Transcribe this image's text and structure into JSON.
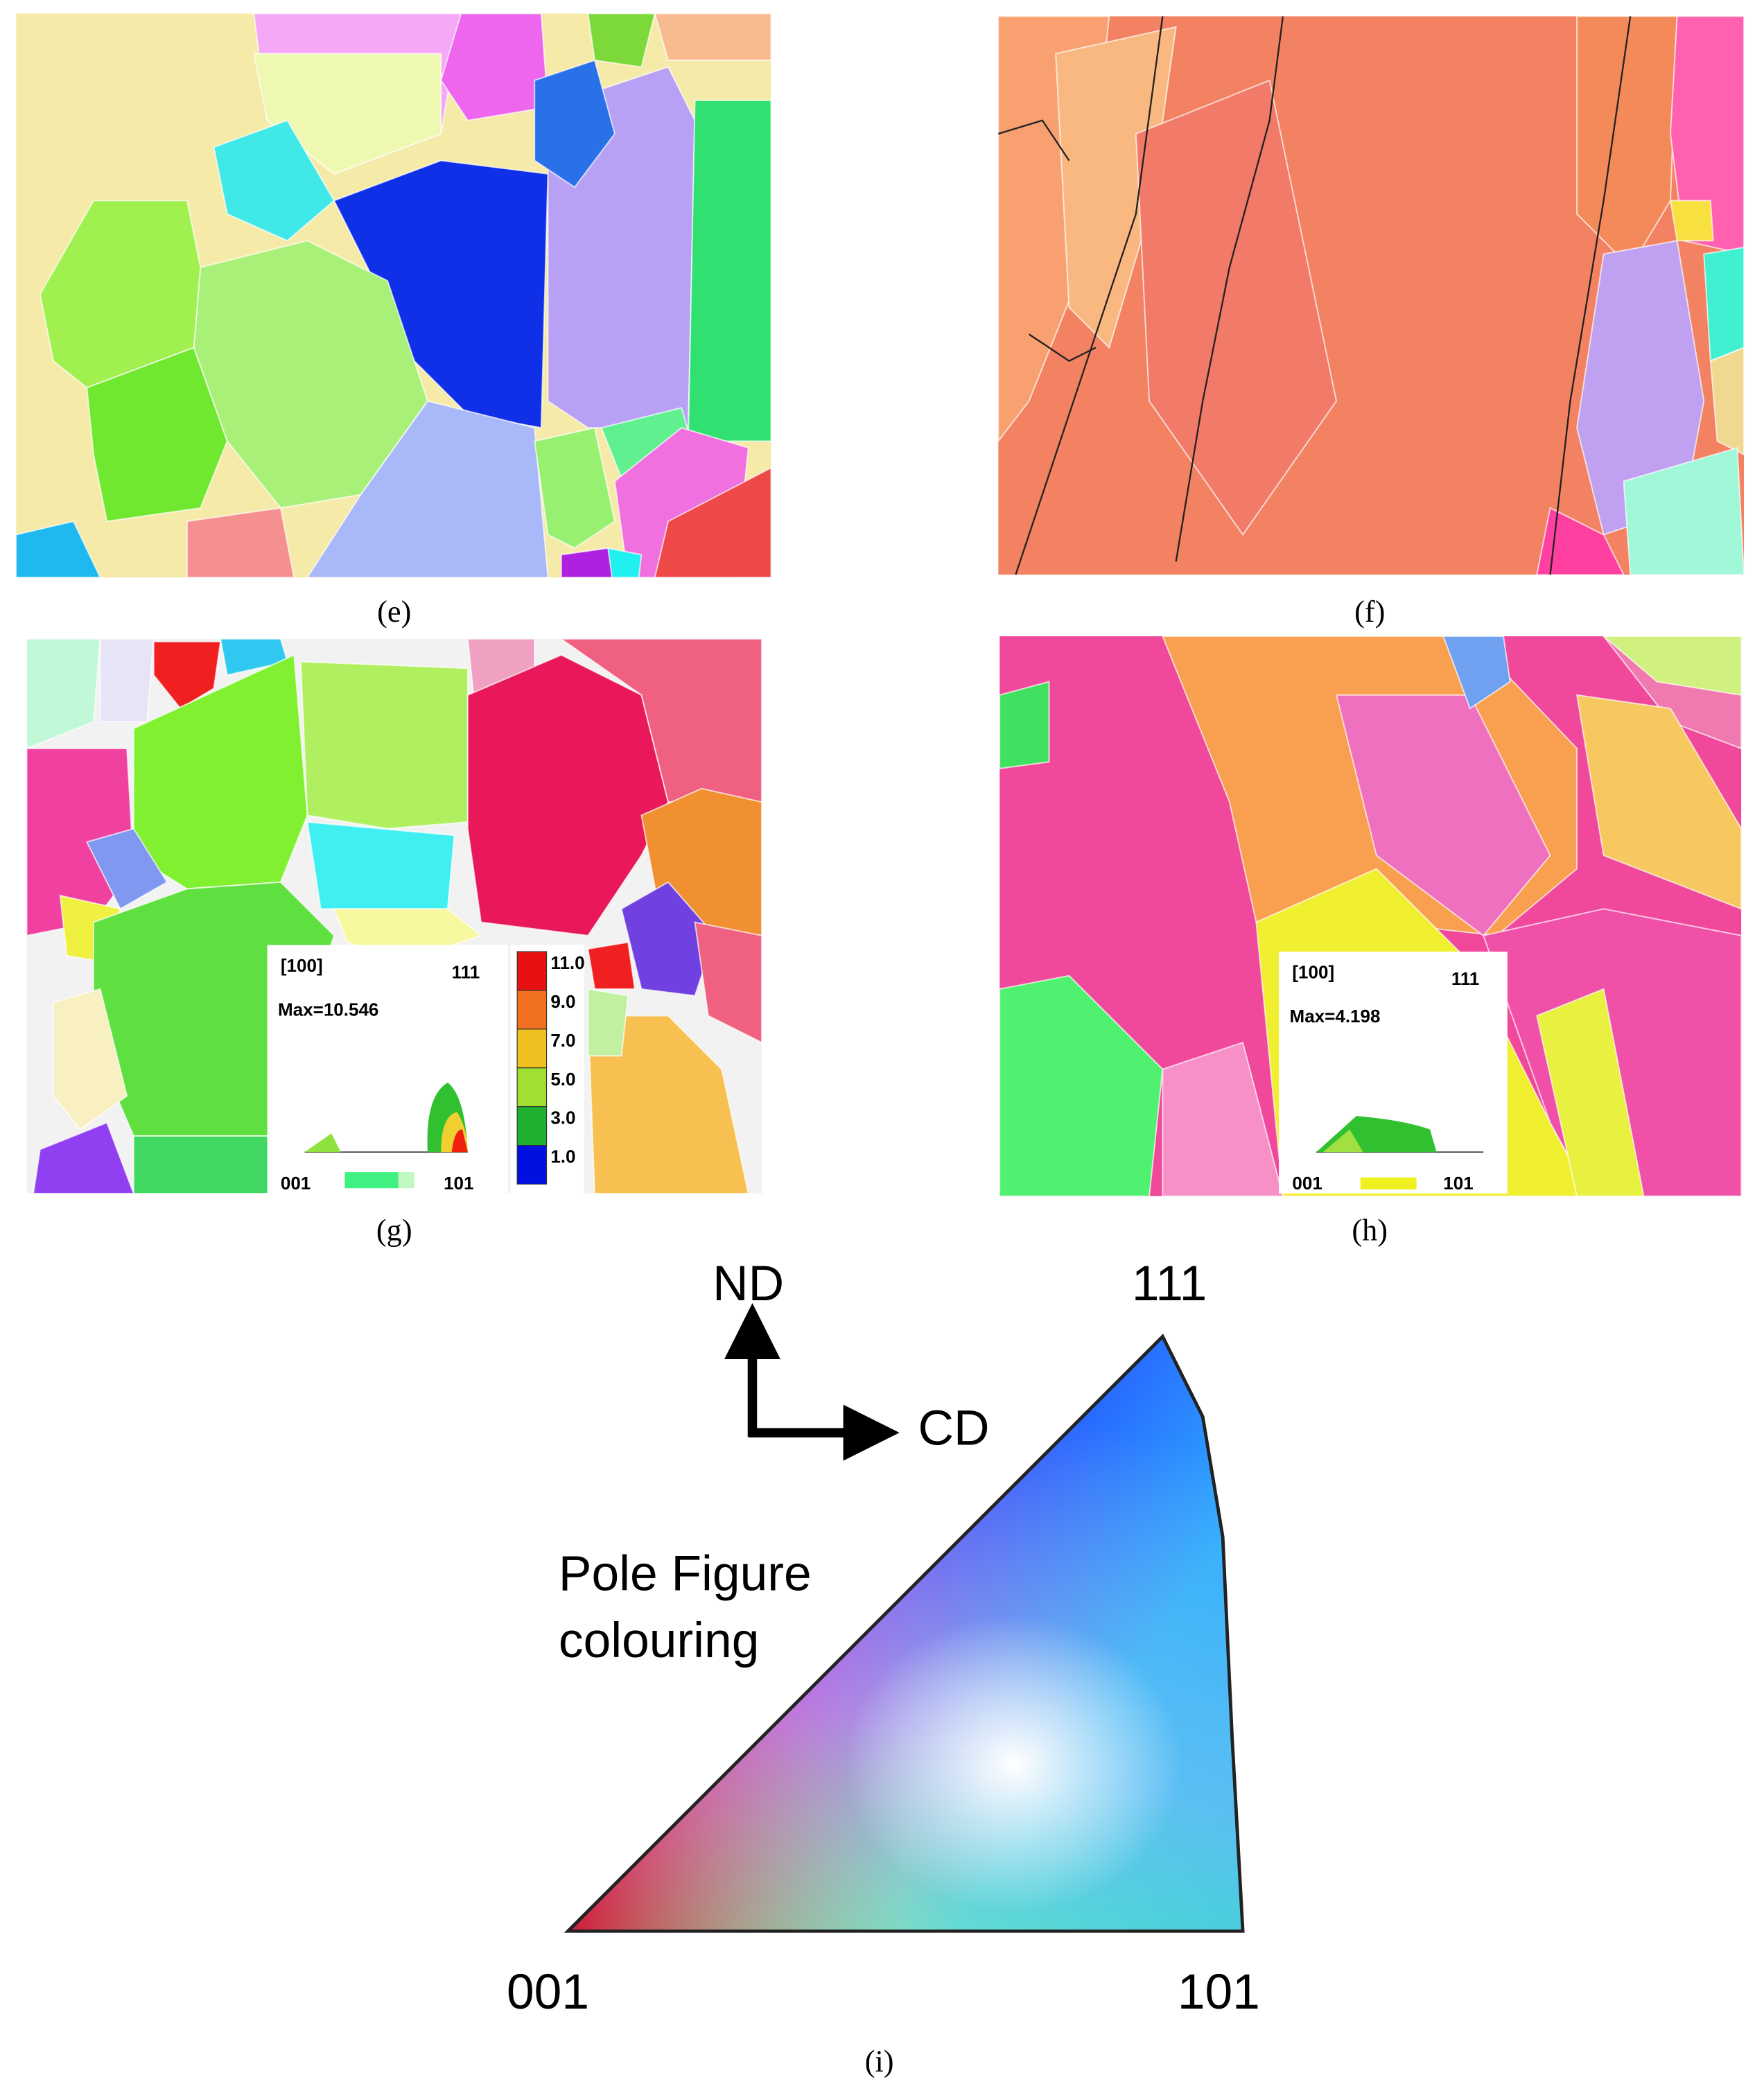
{
  "panels": [
    {
      "label": "(e)"
    },
    {
      "label": "(f)"
    },
    {
      "label": "(g)",
      "inset": {
        "direction": "[100]",
        "corner_top": "111",
        "max": "Max=10.546",
        "corner_left": "001",
        "corner_right": "101",
        "colorbar": [
          "11.0",
          "9.0",
          "7.0",
          "5.0",
          "3.0",
          "1.0"
        ]
      }
    },
    {
      "label": "(h)",
      "inset": {
        "direction": "[100]",
        "corner_top": "111",
        "max": "Max=4.198",
        "corner_left": "001",
        "corner_right": "101"
      }
    }
  ],
  "key": {
    "label": "(i)",
    "nd": "ND",
    "cd": "CD",
    "title_line1": "Pole Figure",
    "title_line2": "colouring",
    "corner_top": "111",
    "corner_left": "001",
    "corner_right": "101"
  }
}
